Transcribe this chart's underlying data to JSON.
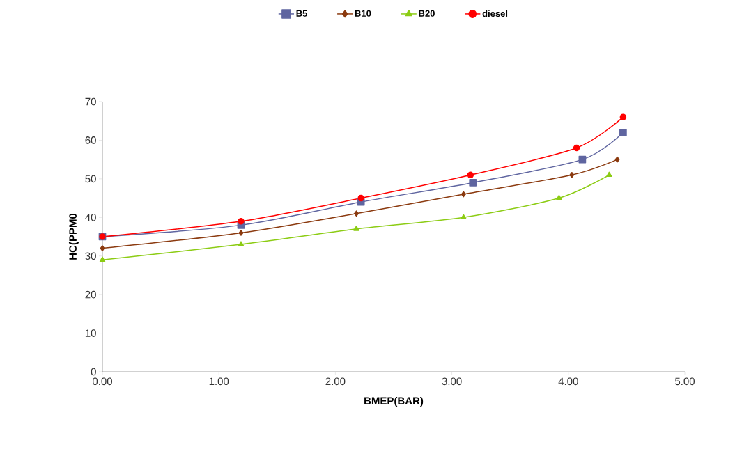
{
  "chart_data": {
    "type": "line",
    "xlabel": "BMEP(BAR)",
    "ylabel": "HC(PPM0",
    "xlim": [
      0,
      5
    ],
    "ylim": [
      0,
      70
    ],
    "xticks": [
      {
        "value": 0,
        "label": "0.00"
      },
      {
        "value": 1,
        "label": "1.00"
      },
      {
        "value": 2,
        "label": "2.00"
      },
      {
        "value": 3,
        "label": "3.00"
      },
      {
        "value": 4,
        "label": "4.00"
      },
      {
        "value": 5,
        "label": "5.00"
      }
    ],
    "yticks": [
      0,
      10,
      20,
      30,
      40,
      50,
      60,
      70
    ],
    "grid": false,
    "legend": "top",
    "series": [
      {
        "name": "B5",
        "color": "#5f65a0",
        "marker": "square",
        "x": [
          0,
          1.19,
          2.22,
          3.18,
          4.12,
          4.47
        ],
        "values": [
          35,
          38,
          44,
          49,
          55,
          62
        ]
      },
      {
        "name": "B10",
        "color": "#8b3a0f",
        "marker": "diamond",
        "x": [
          0,
          1.19,
          2.18,
          3.1,
          4.03,
          4.42
        ],
        "values": [
          32,
          36,
          41,
          46,
          51,
          55
        ]
      },
      {
        "name": "B20",
        "color": "#8ccc14",
        "marker": "triangle",
        "x": [
          0,
          1.19,
          2.18,
          3.1,
          3.92,
          4.35
        ],
        "values": [
          29,
          33,
          37,
          40,
          45,
          51
        ]
      },
      {
        "name": "diesel",
        "color": "#ff0000",
        "marker": "circle",
        "x": [
          0,
          1.19,
          2.22,
          3.16,
          4.07,
          4.47
        ],
        "values": [
          35,
          39,
          45,
          51,
          58,
          66
        ]
      }
    ]
  }
}
